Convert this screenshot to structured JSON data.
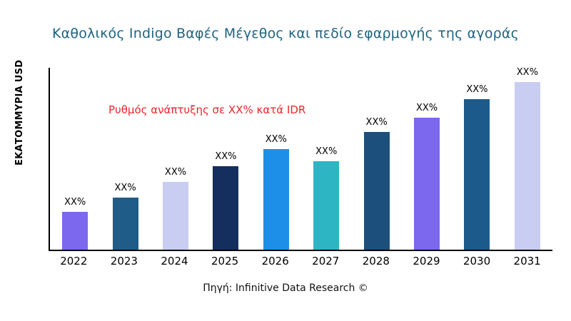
{
  "chart_data": {
    "type": "bar",
    "title": "Καθολικός Indigo Βαφές Μέγεθος και πεδίο εφαρμογής της αγοράς",
    "ylabel": "ΕΚΑΤΟΜΜΥΡΙΑ USD",
    "annotation": "Ρυθμός ανάπτυξης σε XX% κατά IDR",
    "source": "Πηγή: Infinitive Data Research ©",
    "categories": [
      "2022",
      "2023",
      "2024",
      "2025",
      "2026",
      "2027",
      "2028",
      "2029",
      "2030",
      "2031"
    ],
    "values": [
      22,
      30,
      39,
      48,
      58,
      51,
      68,
      76,
      87,
      97
    ],
    "bar_labels": [
      "XX%",
      "XX%",
      "XX%",
      "XX%",
      "XX%",
      "XX%",
      "XX%",
      "XX%",
      "XX%",
      "XX%"
    ],
    "bar_colors": [
      "#7b68ee",
      "#1f5c88",
      "#c9cdf2",
      "#142e5e",
      "#1e8fe8",
      "#2eb5c4",
      "#1c4f7c",
      "#7b68ee",
      "#1c5a8c",
      "#c9cdf2"
    ],
    "ylim": [
      0,
      105
    ],
    "grid": false,
    "legend": false,
    "title_color": "#1f6480",
    "annotation_color": "#e8262c"
  }
}
